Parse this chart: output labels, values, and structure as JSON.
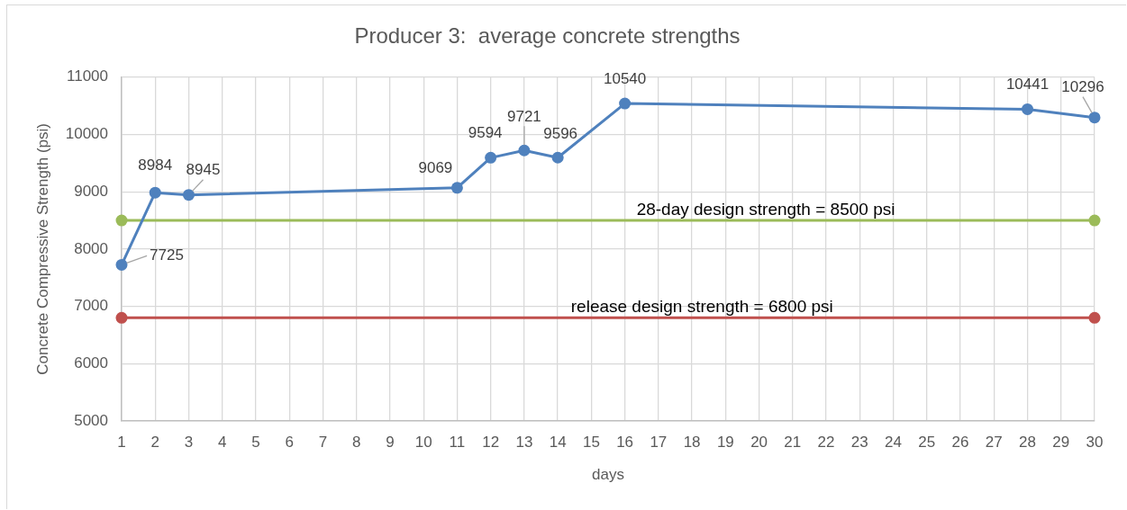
{
  "chart_data": {
    "type": "line",
    "title": "Producer 3:  average concrete strengths",
    "xlabel": "days",
    "ylabel": "Concrete Compressive Strength (psi)",
    "xlim": [
      1,
      30
    ],
    "xticks": [
      1,
      2,
      3,
      4,
      5,
      6,
      7,
      8,
      9,
      10,
      11,
      12,
      13,
      14,
      15,
      16,
      17,
      18,
      19,
      20,
      21,
      22,
      23,
      24,
      25,
      26,
      27,
      28,
      29,
      30
    ],
    "ylim": [
      5000,
      11000
    ],
    "yticks": [
      5000,
      6000,
      7000,
      8000,
      9000,
      10000,
      11000
    ],
    "grid": true,
    "marker": "circle",
    "line_style": "solid",
    "series": [
      {
        "color": "#4f81bd",
        "x": [
          1,
          2,
          3,
          11,
          12,
          13,
          14,
          16,
          28,
          30
        ],
        "values": [
          7725,
          8984,
          8945,
          9069,
          9594,
          9721,
          9596,
          10540,
          10441,
          10296
        ],
        "value_labels": [
          "7725",
          "8984",
          "8945",
          "9069",
          "9594",
          "9721",
          "9596",
          "10540",
          "10441",
          "10296"
        ]
      },
      {
        "color": "#9bbb59",
        "x": [
          1,
          30
        ],
        "values": [
          8500,
          8500
        ]
      },
      {
        "color": "#c0504d",
        "x": [
          1,
          30
        ],
        "values": [
          6800,
          6800
        ]
      }
    ],
    "annotations": [
      {
        "text": "28-day design strength = 8500 psi",
        "x": 20.2,
        "y": 8500
      },
      {
        "text": "release design strength = 6800 psi",
        "x": 18.3,
        "y": 6800
      }
    ]
  }
}
